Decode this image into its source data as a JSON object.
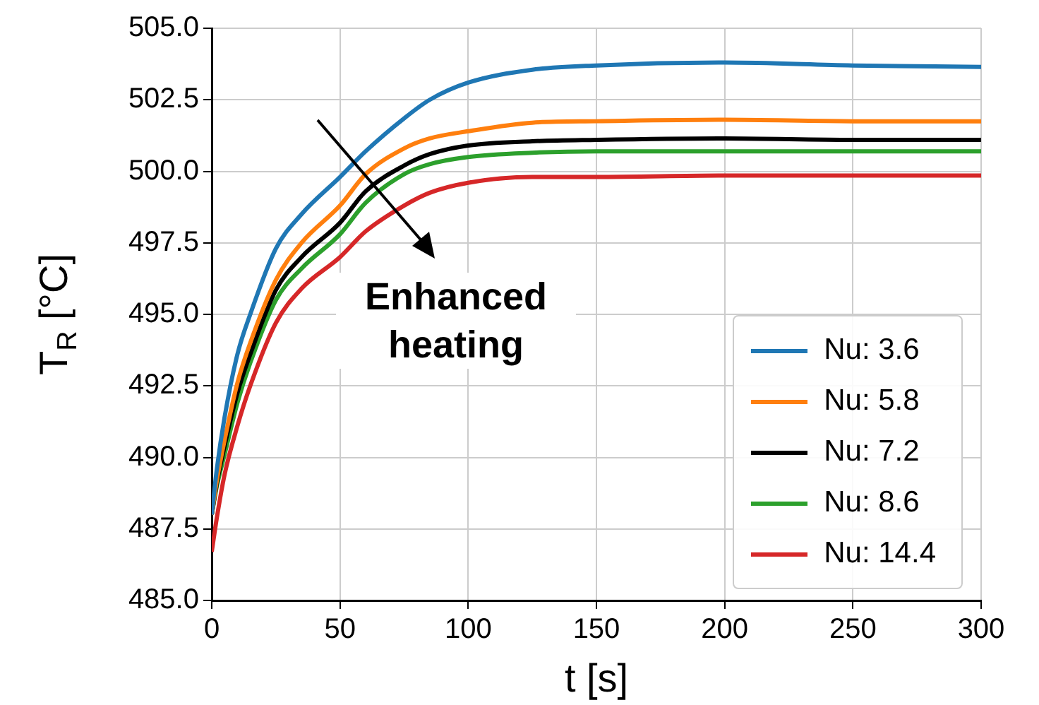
{
  "chart_data": {
    "type": "line",
    "xlabel": "t [s]",
    "ylabel": "T$_{R}$ [°C]",
    "x": [
      0,
      2,
      5,
      10,
      15,
      25,
      35,
      50,
      60,
      75,
      85,
      100,
      125,
      150,
      200,
      250,
      300
    ],
    "series": [
      {
        "name": "Nu: 3.6",
        "color": "#1f77b4",
        "values": [
          488,
          489.6,
          491.4,
          493.6,
          495.0,
          497.3,
          498.5,
          499.8,
          500.7,
          501.85,
          502.5,
          503.1,
          503.55,
          503.7,
          503.8,
          503.7,
          503.65
        ]
      },
      {
        "name": "Nu: 5.8",
        "color": "#ff7f0e",
        "values": [
          488,
          489.2,
          490.6,
          492.6,
          494.0,
          496.2,
          497.5,
          498.8,
          499.9,
          500.8,
          501.15,
          501.4,
          501.7,
          501.75,
          501.8,
          501.75,
          501.75
        ]
      },
      {
        "name": "Nu: 7.2",
        "color": "#000000",
        "values": [
          488,
          489.1,
          490.4,
          492.25,
          493.6,
          495.85,
          497.0,
          498.2,
          499.3,
          500.2,
          500.6,
          500.9,
          501.05,
          501.1,
          501.15,
          501.1,
          501.1
        ]
      },
      {
        "name": "Nu: 8.6",
        "color": "#2ca02c",
        "values": [
          488,
          489.0,
          490.1,
          491.9,
          493.3,
          495.5,
          496.6,
          497.8,
          498.9,
          499.9,
          500.25,
          500.5,
          500.65,
          500.7,
          500.7,
          500.7,
          500.7
        ]
      },
      {
        "name": "Nu: 14.4",
        "color": "#d62728",
        "values": [
          486.7,
          487.9,
          489.4,
          491.1,
          492.5,
          494.7,
          495.9,
          497.0,
          497.9,
          498.8,
          499.25,
          499.6,
          499.8,
          499.8,
          499.85,
          499.85,
          499.85
        ]
      }
    ],
    "xlim": [
      0,
      300
    ],
    "xticks": [
      0,
      50,
      100,
      150,
      200,
      250,
      300
    ],
    "ylim": [
      485,
      505
    ],
    "yticks": [
      {
        "value": 485,
        "label": "485.0"
      },
      {
        "value": 487.5,
        "label": "487.5"
      },
      {
        "value": 490,
        "label": "490.0"
      },
      {
        "value": 492.5,
        "label": "492.5"
      },
      {
        "value": 495,
        "label": "495.0"
      },
      {
        "value": 497.5,
        "label": "497.5"
      },
      {
        "value": 500,
        "label": "500.0"
      },
      {
        "value": 502.5,
        "label": "502.5"
      },
      {
        "value": 505,
        "label": "505.0"
      }
    ],
    "grid": true,
    "legend": "bottom right",
    "marker": "none",
    "line_style": "solid",
    "annotations": [
      "Enhanced heating"
    ]
  }
}
